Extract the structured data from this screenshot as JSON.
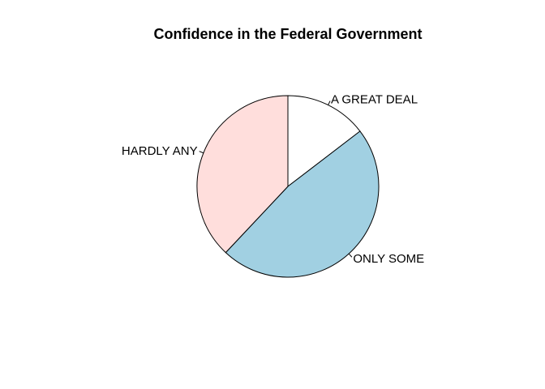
{
  "chart_data": {
    "type": "pie",
    "title": "Confidence in the Federal Government",
    "slices": [
      {
        "label": "A GREAT DEAL",
        "value": 14.6,
        "color": "#ffffff"
      },
      {
        "label": "ONLY SOME",
        "value": 47.4,
        "color": "#a1d0e2"
      },
      {
        "label": "HARDLY ANY",
        "value": 38.0,
        "color": "#ffdedc"
      }
    ],
    "start": "12 o'clock",
    "direction": "clockwise",
    "legend": "none"
  }
}
